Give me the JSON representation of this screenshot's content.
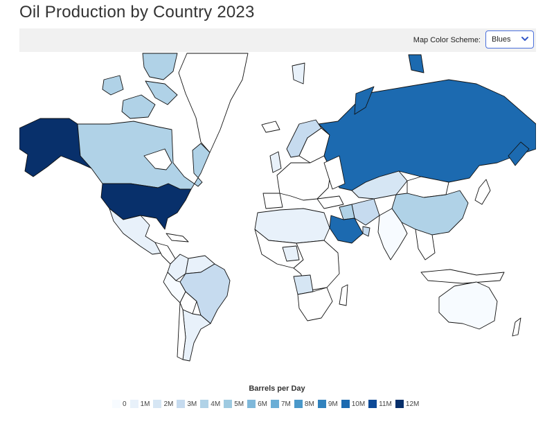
{
  "title": "Oil Production by Country 2023",
  "controls": {
    "scheme_label": "Map Color Scheme:",
    "scheme_value": "Blues"
  },
  "map": {
    "scale": "Blues",
    "countries": [
      {
        "name": "United States",
        "bin": "12M"
      },
      {
        "name": "Russia",
        "bin": "10M"
      },
      {
        "name": "Saudi Arabia",
        "bin": "10M"
      },
      {
        "name": "Canada",
        "bin": "4M"
      },
      {
        "name": "China",
        "bin": "4M"
      },
      {
        "name": "Brazil",
        "bin": "3M"
      },
      {
        "name": "Kazakhstan",
        "bin": "2M"
      },
      {
        "name": "Australia",
        "bin": "1M"
      }
    ]
  },
  "legend": {
    "title": "Barrels per Day",
    "items": [
      {
        "label": "0",
        "color": "#f7fbff"
      },
      {
        "label": "1M",
        "color": "#e8f1fa"
      },
      {
        "label": "2M",
        "color": "#d6e6f4"
      },
      {
        "label": "3M",
        "color": "#c6dbef"
      },
      {
        "label": "4M",
        "color": "#b0d2e7"
      },
      {
        "label": "5M",
        "color": "#9ecae1"
      },
      {
        "label": "6M",
        "color": "#7fb8da"
      },
      {
        "label": "7M",
        "color": "#6baed6"
      },
      {
        "label": "8M",
        "color": "#4a98c9"
      },
      {
        "label": "9M",
        "color": "#3182bd"
      },
      {
        "label": "10M",
        "color": "#1c6ab0"
      },
      {
        "label": "11M",
        "color": "#0d4a97"
      },
      {
        "label": "12M",
        "color": "#08306b"
      }
    ]
  }
}
